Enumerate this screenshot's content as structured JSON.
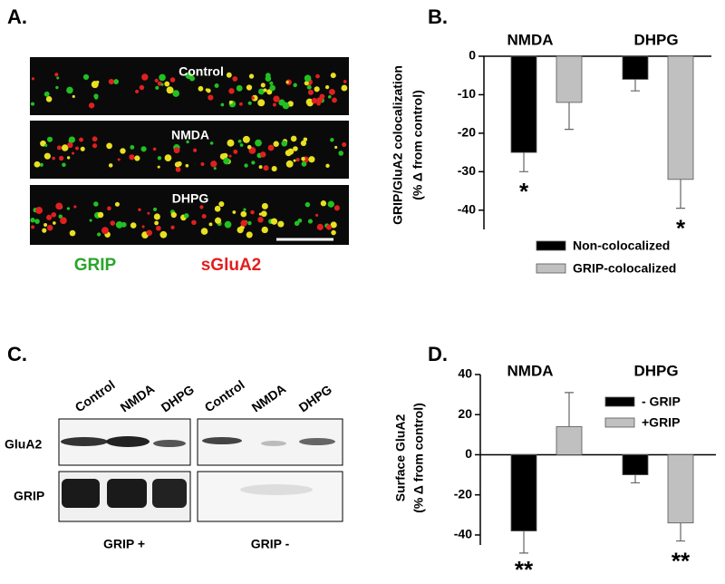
{
  "panels": {
    "a": {
      "label": "A.",
      "conditions": [
        "Control",
        "NMDA",
        "DHPG"
      ],
      "legend": [
        "GRIP",
        "sGluA2"
      ]
    },
    "c": {
      "label": "C.",
      "lanes": [
        "Control",
        "NMDA",
        "DHPG"
      ],
      "rows": [
        "GluA2",
        "GRIP"
      ],
      "groups": [
        "GRIP +",
        "GRIP -"
      ]
    }
  },
  "chart_data": [
    {
      "type": "bar",
      "panel_label": "B.",
      "y_label": [
        "GRIP/GluA2 colocalization",
        "(% Δ from control)"
      ],
      "categories": [
        "NMDA",
        "DHPG"
      ],
      "series": [
        {
          "name": "Non-colocalized",
          "color": "#000000",
          "values": [
            -25,
            -6
          ],
          "errors": [
            5,
            3
          ]
        },
        {
          "name": "GRIP-colocalized",
          "color": "#c0c0c0",
          "values": [
            -12,
            -32
          ],
          "errors": [
            7,
            7.5
          ]
        }
      ],
      "ylim": [
        -45,
        0
      ],
      "yticks": [
        0,
        -10,
        -20,
        -30,
        -40
      ],
      "legend": "bottom right",
      "annotations": [
        {
          "text": "*",
          "category": "NMDA",
          "series": "Non-colocalized"
        },
        {
          "text": "*",
          "category": "DHPG",
          "series": "GRIP-colocalized"
        }
      ]
    },
    {
      "type": "bar",
      "panel_label": "D.",
      "y_label": [
        "Surface GluA2",
        "(% Δ from control)"
      ],
      "categories": [
        "NMDA",
        "DHPG"
      ],
      "series": [
        {
          "name": "- GRIP",
          "color": "#000000",
          "values": [
            -38,
            -10
          ],
          "errors": [
            11,
            4
          ]
        },
        {
          "name": "+GRIP",
          "color": "#c0c0c0",
          "values": [
            14,
            -34
          ],
          "errors": [
            17,
            9
          ]
        }
      ],
      "ylim": [
        -45,
        40
      ],
      "yticks": [
        40,
        20,
        0,
        -20,
        -40
      ],
      "legend": "upper right",
      "annotations": [
        {
          "text": "**",
          "category": "NMDA",
          "series": "- GRIP"
        },
        {
          "text": "**",
          "category": "DHPG",
          "series": "+GRIP"
        }
      ]
    }
  ]
}
